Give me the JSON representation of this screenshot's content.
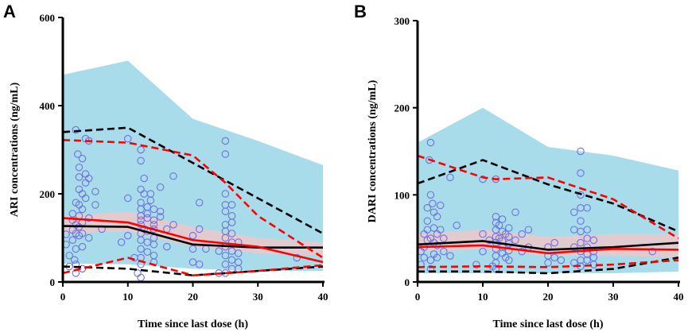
{
  "chart_data": [
    {
      "type": "scatter",
      "panel_label": "A",
      "xlabel": "Time since last dose (h)",
      "ylabel": "ARI concentrations (ng/mL)",
      "xlim": [
        0,
        40
      ],
      "ylim": [
        0,
        600
      ],
      "x_ticks": [
        "0",
        "10",
        "20",
        "30",
        "40"
      ],
      "y_ticks": [
        "0",
        "200",
        "400",
        "600"
      ],
      "x_tick_values": [
        0,
        10,
        20,
        30,
        40
      ],
      "y_tick_values": [
        0,
        200,
        400,
        600
      ],
      "colors": {
        "outer_band": "#a8dcea",
        "inner_band": "#f5c6c6",
        "observed_line": "#ff0000",
        "simulated_line": "#000000",
        "points": "#6f6fe6"
      },
      "bands": [
        {
          "name": "outer-band",
          "x": [
            0,
            10,
            20,
            30,
            40
          ],
          "lower": [
            42,
            40,
            30,
            25,
            25
          ],
          "upper": [
            470,
            502,
            370,
            320,
            265
          ]
        },
        {
          "name": "inner-band",
          "x": [
            0,
            10,
            20,
            30,
            40
          ],
          "lower": [
            110,
            115,
            80,
            65,
            60
          ],
          "upper": [
            150,
            160,
            125,
            100,
            90
          ]
        }
      ],
      "series": [
        {
          "name": "simulated-upper",
          "color": "#000000",
          "dash": true,
          "x": [
            0,
            10,
            20,
            30,
            40
          ],
          "y": [
            340,
            350,
            270,
            190,
            110
          ]
        },
        {
          "name": "simulated-median",
          "color": "#000000",
          "dash": false,
          "x": [
            0,
            10,
            20,
            30,
            40
          ],
          "y": [
            127,
            125,
            85,
            78,
            78
          ]
        },
        {
          "name": "simulated-lower",
          "color": "#000000",
          "dash": true,
          "x": [
            0,
            10,
            20,
            30,
            40
          ],
          "y": [
            35,
            30,
            15,
            25,
            35
          ]
        },
        {
          "name": "observed-upper",
          "color": "#ff0000",
          "dash": true,
          "x": [
            0,
            10,
            20,
            25,
            30,
            40
          ],
          "y": [
            322,
            316,
            287,
            225,
            150,
            55
          ]
        },
        {
          "name": "observed-median",
          "color": "#ff0000",
          "dash": false,
          "x": [
            0,
            10,
            20,
            30,
            40
          ],
          "y": [
            145,
            135,
            95,
            80,
            45
          ]
        },
        {
          "name": "observed-lower",
          "color": "#ff0000",
          "dash": true,
          "x": [
            0,
            10,
            20,
            30,
            40
          ],
          "y": [
            20,
            55,
            15,
            25,
            38
          ]
        }
      ],
      "points": [
        [
          0.5,
          108
        ],
        [
          0.5,
          85
        ],
        [
          1,
          35
        ],
        [
          1,
          60
        ],
        [
          1.5,
          155
        ],
        [
          1.5,
          140
        ],
        [
          1.5,
          118
        ],
        [
          1.5,
          95
        ],
        [
          1.8,
          50
        ],
        [
          2,
          345
        ],
        [
          2,
          180
        ],
        [
          2,
          130
        ],
        [
          2,
          110
        ],
        [
          2,
          75
        ],
        [
          2,
          40
        ],
        [
          2,
          20
        ],
        [
          2.3,
          290
        ],
        [
          2.5,
          260
        ],
        [
          2.5,
          238
        ],
        [
          2.5,
          210
        ],
        [
          2.5,
          175
        ],
        [
          2.5,
          150
        ],
        [
          2.5,
          125
        ],
        [
          2.5,
          105
        ],
        [
          3,
          280
        ],
        [
          3,
          200
        ],
        [
          3,
          165
        ],
        [
          3,
          135
        ],
        [
          3,
          110
        ],
        [
          3,
          80
        ],
        [
          3,
          30
        ],
        [
          3.5,
          325
        ],
        [
          3.5,
          245
        ],
        [
          3.5,
          225
        ],
        [
          3.5,
          190
        ],
        [
          4,
          320
        ],
        [
          4,
          235
        ],
        [
          4,
          145
        ],
        [
          4,
          100
        ],
        [
          5,
          205
        ],
        [
          5,
          175
        ],
        [
          6,
          120
        ],
        [
          9,
          90
        ],
        [
          10,
          325
        ],
        [
          10,
          190
        ],
        [
          10,
          105
        ],
        [
          11,
          55
        ],
        [
          11.5,
          20
        ],
        [
          12,
          300
        ],
        [
          12,
          275
        ],
        [
          12,
          210
        ],
        [
          12,
          180
        ],
        [
          12,
          165
        ],
        [
          12,
          150
        ],
        [
          12,
          140
        ],
        [
          12,
          130
        ],
        [
          12,
          110
        ],
        [
          12,
          95
        ],
        [
          12,
          75
        ],
        [
          12,
          55
        ],
        [
          12,
          40
        ],
        [
          12,
          10
        ],
        [
          12.5,
          235
        ],
        [
          12.5,
          200
        ],
        [
          12.5,
          120
        ],
        [
          13,
          170
        ],
        [
          13,
          155
        ],
        [
          13,
          145
        ],
        [
          13,
          115
        ],
        [
          13,
          90
        ],
        [
          13,
          68
        ],
        [
          13.5,
          200
        ],
        [
          13.5,
          185
        ],
        [
          14,
          165
        ],
        [
          14,
          140
        ],
        [
          14,
          130
        ],
        [
          14,
          120
        ],
        [
          14,
          100
        ],
        [
          14,
          85
        ],
        [
          14,
          60
        ],
        [
          14,
          45
        ],
        [
          15,
          215
        ],
        [
          15,
          160
        ],
        [
          15,
          148
        ],
        [
          16,
          120
        ],
        [
          16,
          80
        ],
        [
          17,
          240
        ],
        [
          17,
          130
        ],
        [
          20,
          105
        ],
        [
          20,
          75
        ],
        [
          20,
          45
        ],
        [
          21,
          180
        ],
        [
          21,
          120
        ],
        [
          21,
          40
        ],
        [
          22,
          75
        ],
        [
          24,
          20
        ],
        [
          24,
          70
        ],
        [
          25,
          320
        ],
        [
          25,
          290
        ],
        [
          25,
          200
        ],
        [
          25,
          175
        ],
        [
          25,
          160
        ],
        [
          25,
          130
        ],
        [
          25,
          115
        ],
        [
          25,
          100
        ],
        [
          25,
          80
        ],
        [
          25,
          60
        ],
        [
          25,
          40
        ],
        [
          25,
          20
        ],
        [
          26,
          175
        ],
        [
          26,
          150
        ],
        [
          26,
          135
        ],
        [
          26,
          110
        ],
        [
          26,
          90
        ],
        [
          26,
          70
        ],
        [
          26,
          50
        ],
        [
          26,
          30
        ],
        [
          27,
          90
        ],
        [
          27,
          65
        ],
        [
          27,
          45
        ],
        [
          27,
          30
        ],
        [
          36,
          55
        ]
      ]
    },
    {
      "type": "scatter",
      "panel_label": "B",
      "xlabel": "Time since last dose (h)",
      "ylabel": "DARI concentrations (ng/mL)",
      "xlim": [
        0,
        40
      ],
      "ylim": [
        0,
        300
      ],
      "x_ticks": [
        "0",
        "10",
        "20",
        "30",
        "40"
      ],
      "y_ticks": [
        "0",
        "100",
        "200",
        "300"
      ],
      "x_tick_values": [
        0,
        10,
        20,
        30,
        40
      ],
      "y_tick_values": [
        0,
        100,
        200,
        300
      ],
      "colors": {
        "outer_band": "#a8dcea",
        "inner_band": "#f5c6c6",
        "observed_line": "#ff0000",
        "simulated_line": "#000000",
        "points": "#6f6fe6"
      },
      "bands": [
        {
          "name": "outer-band",
          "x": [
            0,
            10,
            20,
            30,
            40
          ],
          "lower": [
            10,
            10,
            10,
            10,
            12
          ],
          "upper": [
            160,
            200,
            155,
            145,
            128
          ]
        },
        {
          "name": "inner-band",
          "x": [
            0,
            10,
            20,
            30,
            40
          ],
          "lower": [
            35,
            38,
            30,
            30,
            28
          ],
          "upper": [
            55,
            60,
            52,
            55,
            55
          ]
        }
      ],
      "series": [
        {
          "name": "simulated-upper",
          "color": "#000000",
          "dash": true,
          "x": [
            0,
            10,
            20,
            30,
            40
          ],
          "y": [
            113,
            140,
            112,
            90,
            58
          ]
        },
        {
          "name": "simulated-median",
          "color": "#000000",
          "dash": false,
          "x": [
            0,
            10,
            20,
            30,
            40
          ],
          "y": [
            43,
            47,
            37,
            40,
            45
          ]
        },
        {
          "name": "simulated-lower",
          "color": "#000000",
          "dash": true,
          "x": [
            0,
            10,
            20,
            30,
            40
          ],
          "y": [
            12,
            12,
            10,
            15,
            28
          ]
        },
        {
          "name": "observed-upper",
          "color": "#ff0000",
          "dash": true,
          "x": [
            0,
            10,
            12,
            20,
            30,
            40
          ],
          "y": [
            145,
            120,
            118,
            120,
            95,
            50
          ]
        },
        {
          "name": "observed-median",
          "color": "#ff0000",
          "dash": false,
          "x": [
            0,
            10,
            20,
            30,
            40
          ],
          "y": [
            40,
            42,
            33,
            38,
            37
          ]
        },
        {
          "name": "observed-lower",
          "color": "#ff0000",
          "dash": true,
          "x": [
            0,
            10,
            20,
            30,
            40
          ],
          "y": [
            17,
            18,
            17,
            20,
            25
          ]
        }
      ],
      "points": [
        [
          0.5,
          35
        ],
        [
          0.5,
          20
        ],
        [
          1,
          55
        ],
        [
          1,
          40
        ],
        [
          1,
          28
        ],
        [
          1.5,
          85
        ],
        [
          1.5,
          70
        ],
        [
          1.5,
          60
        ],
        [
          1.5,
          48
        ],
        [
          1.8,
          140
        ],
        [
          2,
          160
        ],
        [
          2,
          100
        ],
        [
          2,
          50
        ],
        [
          2,
          25
        ],
        [
          2,
          15
        ],
        [
          2.3,
          90
        ],
        [
          2.5,
          80
        ],
        [
          2.5,
          62
        ],
        [
          2.5,
          45
        ],
        [
          2.5,
          32
        ],
        [
          3,
          75
        ],
        [
          3,
          55
        ],
        [
          3,
          42
        ],
        [
          3,
          28
        ],
        [
          3.5,
          88
        ],
        [
          3.5,
          60
        ],
        [
          4,
          50
        ],
        [
          4,
          35
        ],
        [
          5,
          120
        ],
        [
          5,
          30
        ],
        [
          6,
          65
        ],
        [
          9,
          20
        ],
        [
          10,
          118
        ],
        [
          10,
          55
        ],
        [
          10,
          35
        ],
        [
          11,
          48
        ],
        [
          11.5,
          18
        ],
        [
          12,
          118
        ],
        [
          12,
          75
        ],
        [
          12,
          68
        ],
        [
          12,
          60
        ],
        [
          12,
          52
        ],
        [
          12,
          45
        ],
        [
          12,
          38
        ],
        [
          12,
          30
        ],
        [
          12,
          22
        ],
        [
          12,
          15
        ],
        [
          12.5,
          65
        ],
        [
          12.5,
          50
        ],
        [
          13,
          72
        ],
        [
          13,
          58
        ],
        [
          13,
          47
        ],
        [
          13,
          40
        ],
        [
          13,
          33
        ],
        [
          13.5,
          55
        ],
        [
          13.5,
          28
        ],
        [
          14,
          62
        ],
        [
          14,
          52
        ],
        [
          14,
          44
        ],
        [
          14,
          36
        ],
        [
          14,
          25
        ],
        [
          15,
          80
        ],
        [
          15,
          48
        ],
        [
          16,
          55
        ],
        [
          16,
          35
        ],
        [
          17,
          60
        ],
        [
          17,
          40
        ],
        [
          20,
          40
        ],
        [
          20,
          30
        ],
        [
          20,
          22
        ],
        [
          21,
          45
        ],
        [
          21,
          28
        ],
        [
          22,
          25
        ],
        [
          24,
          80
        ],
        [
          24,
          60
        ],
        [
          24,
          40
        ],
        [
          24,
          22
        ],
        [
          25,
          150
        ],
        [
          25,
          125
        ],
        [
          25,
          100
        ],
        [
          25,
          85
        ],
        [
          25,
          70
        ],
        [
          25,
          58
        ],
        [
          25,
          45
        ],
        [
          25,
          35
        ],
        [
          25,
          25
        ],
        [
          25,
          18
        ],
        [
          26,
          85
        ],
        [
          26,
          60
        ],
        [
          26,
          50
        ],
        [
          26,
          40
        ],
        [
          26,
          32
        ],
        [
          26,
          25
        ],
        [
          27,
          48
        ],
        [
          27,
          35
        ],
        [
          27,
          28
        ],
        [
          27,
          20
        ],
        [
          36,
          35
        ]
      ]
    }
  ]
}
